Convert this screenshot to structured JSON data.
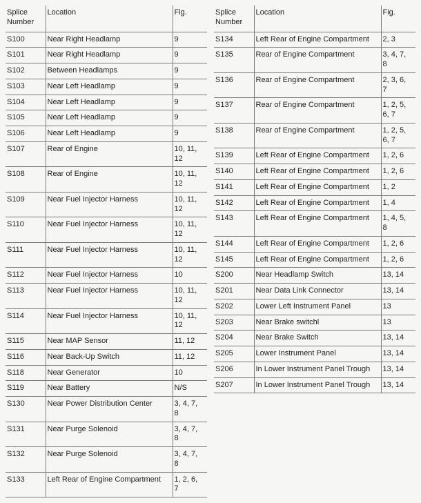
{
  "headers": {
    "splice": "Splice\nNumber",
    "location": "Location",
    "fig": "Fig."
  },
  "left": [
    {
      "splice": "S100",
      "location": "Near Right Headlamp",
      "fig": "9"
    },
    {
      "splice": "S101",
      "location": "Near Right Headlamp",
      "fig": "9"
    },
    {
      "splice": "S102",
      "location": "Between Headlamps",
      "fig": "9"
    },
    {
      "splice": "S103",
      "location": "Near Left Headlamp",
      "fig": "9"
    },
    {
      "splice": "S104",
      "location": "Near Left Headlamp",
      "fig": "9"
    },
    {
      "splice": "S105",
      "location": "Near Left Headlamp",
      "fig": "9"
    },
    {
      "splice": "S106",
      "location": "Near Left Headlamp",
      "fig": "9"
    },
    {
      "splice": "S107",
      "location": "Rear of Engine",
      "fig": "10, 11, 12"
    },
    {
      "splice": "S108",
      "location": "Rear of Engine",
      "fig": "10, 11, 12"
    },
    {
      "splice": "S109",
      "location": "Near Fuel Injector Harness",
      "fig": "10, 11, 12"
    },
    {
      "splice": "S110",
      "location": "Near Fuel Injector Harness",
      "fig": "10, 11, 12"
    },
    {
      "splice": "S111",
      "location": "Near Fuel Injector Harness",
      "fig": "10, 11, 12"
    },
    {
      "splice": "S112",
      "location": "Near Fuel Injector Harness",
      "fig": "10"
    },
    {
      "splice": "S113",
      "location": "Near Fuel Injector Harness",
      "fig": "10, 11, 12"
    },
    {
      "splice": "S114",
      "location": "Near Fuel Injector Harness",
      "fig": "10, 11, 12"
    },
    {
      "splice": "S115",
      "location": "Near MAP Sensor",
      "fig": "11, 12"
    },
    {
      "splice": "S116",
      "location": "Near Back-Up Switch",
      "fig": "11, 12"
    },
    {
      "splice": "S118",
      "location": "Near Generator",
      "fig": "10"
    },
    {
      "splice": "S119",
      "location": "Near Battery",
      "fig": "N/S"
    },
    {
      "splice": "S130",
      "location": "Near Power Distribution Center",
      "fig": "3, 4, 7, 8"
    },
    {
      "splice": "S131",
      "location": "Near Purge Solenoid",
      "fig": "3, 4, 7, 8"
    },
    {
      "splice": "S132",
      "location": "Near Purge Solenoid",
      "fig": "3, 4, 7, 8"
    },
    {
      "splice": "S133",
      "location": "Left Rear of Engine Compartment",
      "fig": "1, 2, 6, 7"
    }
  ],
  "right": [
    {
      "splice": "S134",
      "location": "Left Rear of Engine Compartment",
      "fig": "2, 3"
    },
    {
      "splice": "S135",
      "location": "Rear of Engine Compartment",
      "fig": "3, 4, 7, 8"
    },
    {
      "splice": "S136",
      "location": "Rear of Engine Compartment",
      "fig": "2, 3, 6, 7"
    },
    {
      "splice": "S137",
      "location": "Rear of Engine Compartment",
      "fig": "1, 2, 5, 6, 7"
    },
    {
      "splice": "S138",
      "location": "Rear of Engine Compartment",
      "fig": "1, 2, 5, 6, 7"
    },
    {
      "splice": "S139",
      "location": "Left Rear of Engine Compartment",
      "fig": "1, 2, 6"
    },
    {
      "splice": "S140",
      "location": "Left Rear of Engine Compartment",
      "fig": "1, 2, 6"
    },
    {
      "splice": "S141",
      "location": "Left Rear of Engine Compartment",
      "fig": "1, 2"
    },
    {
      "splice": "S142",
      "location": "Left Rear of Engine Compartment",
      "fig": "1, 4"
    },
    {
      "splice": "S143",
      "location": "Left Rear of Engine Compartment",
      "fig": "1, 4, 5, 8"
    },
    {
      "splice": "S144",
      "location": "Left Rear of Engine Compartment",
      "fig": "1, 2, 6"
    },
    {
      "splice": "S145",
      "location": "Left Rear of Engine Compartment",
      "fig": "1, 2, 6"
    },
    {
      "splice": "S200",
      "location": "Near Headlamp Switch",
      "fig": "13, 14"
    },
    {
      "splice": "S201",
      "location": "Near Data Link Connector",
      "fig": "13, 14"
    },
    {
      "splice": "S202",
      "location": "Lower Left Instrument Panel",
      "fig": "13"
    },
    {
      "splice": "S203",
      "location": "Near Brake switchl",
      "fig": "13"
    },
    {
      "splice": "S204",
      "location": "Near Brake Switch",
      "fig": "13, 14"
    },
    {
      "splice": "S205",
      "location": "Lower Instrument Panel",
      "fig": "13, 14"
    },
    {
      "splice": "S206",
      "location": "In Lower Instrument Panel Trough",
      "fig": "13, 14"
    },
    {
      "splice": "S207",
      "location": "In Lower Instrument Panel Trough",
      "fig": "13, 14"
    }
  ]
}
